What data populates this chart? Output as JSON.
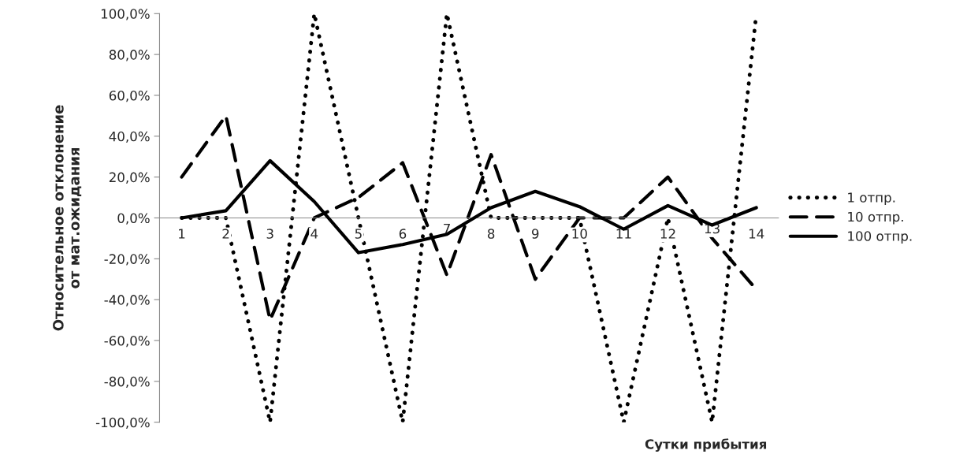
{
  "chart_data": {
    "type": "line",
    "xlabel": "Сутки прибытия",
    "ylabel": "Относительное отклонение\nот мат.ожидания",
    "categories": [
      "1",
      "2",
      "3",
      "4",
      "5",
      "6",
      "7",
      "8",
      "9",
      "10",
      "11",
      "12",
      "13",
      "14"
    ],
    "series": [
      {
        "name": "1 отпр.",
        "color": "#000000",
        "line_style": "dotted",
        "values": [
          0,
          0,
          -100,
          100,
          0,
          -100,
          100,
          0,
          0,
          0,
          -100,
          0,
          -100,
          100
        ]
      },
      {
        "name": "10 отпр.",
        "color": "#000000",
        "line_style": "dashed",
        "values": [
          20,
          50,
          -50,
          0,
          10,
          27,
          -28,
          31,
          -30,
          0,
          0,
          20,
          -10,
          -35
        ]
      },
      {
        "name": "100 отпр.",
        "color": "#000000",
        "line_style": "solid",
        "values": [
          0,
          3.5,
          28,
          8,
          -17,
          -13,
          -8,
          5,
          13,
          5.5,
          -5.5,
          6,
          -3.5,
          5
        ]
      }
    ],
    "ylim": [
      -100,
      100
    ],
    "yticks": [
      {
        "value": -100,
        "label": "-100,0%"
      },
      {
        "value": -80,
        "label": "-80,0%"
      },
      {
        "value": -60,
        "label": "-60,0%"
      },
      {
        "value": -40,
        "label": "-40,0%"
      },
      {
        "value": -20,
        "label": "-20,0%"
      },
      {
        "value": 0,
        "label": "0,0%"
      },
      {
        "value": 20,
        "label": "20,0%"
      },
      {
        "value": 40,
        "label": "40,0%"
      },
      {
        "value": 60,
        "label": "60,0%"
      },
      {
        "value": 80,
        "label": "80,0%"
      },
      {
        "value": 100,
        "label": "100,0%"
      }
    ],
    "grid": false,
    "legend": "right"
  }
}
